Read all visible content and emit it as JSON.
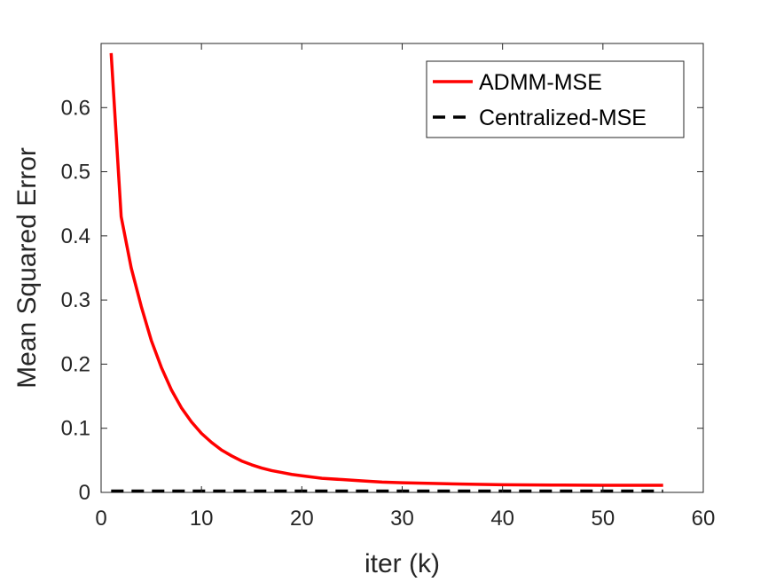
{
  "chart_data": {
    "type": "line",
    "xlabel": "iter (k)",
    "ylabel": "Mean Squared Error",
    "xlim": [
      0,
      60
    ],
    "ylim": [
      0,
      0.7
    ],
    "xticks": [
      0,
      10,
      20,
      30,
      40,
      50,
      60
    ],
    "yticks": [
      0,
      0.1,
      0.2,
      0.3,
      0.4,
      0.5,
      0.6
    ],
    "ytick_labels": [
      "0",
      "0.1",
      "0.2",
      "0.3",
      "0.4",
      "0.5",
      "0.6"
    ],
    "grid": false,
    "legend_position": "top-right",
    "series": [
      {
        "name": "ADMM-MSE",
        "color": "#ff0000",
        "style": "solid",
        "x": [
          1,
          2,
          3,
          4,
          5,
          6,
          7,
          8,
          9,
          10,
          11,
          12,
          13,
          14,
          15,
          16,
          17,
          18,
          19,
          20,
          22,
          24,
          26,
          28,
          30,
          33,
          36,
          40,
          45,
          50,
          56
        ],
        "y": [
          0.685,
          0.43,
          0.35,
          0.29,
          0.237,
          0.195,
          0.16,
          0.132,
          0.11,
          0.092,
          0.078,
          0.066,
          0.057,
          0.049,
          0.043,
          0.038,
          0.034,
          0.031,
          0.028,
          0.026,
          0.022,
          0.02,
          0.018,
          0.016,
          0.015,
          0.014,
          0.013,
          0.012,
          0.0115,
          0.011,
          0.011
        ]
      },
      {
        "name": "Centralized-MSE",
        "color": "#000000",
        "style": "dashed",
        "x": [
          1,
          56
        ],
        "y": [
          0.002,
          0.002
        ]
      }
    ]
  }
}
